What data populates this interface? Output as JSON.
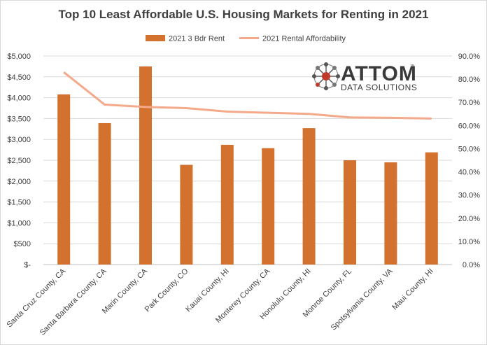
{
  "chart_data": {
    "type": "bar",
    "title": "Top 10 Least Affordable U.S. Housing Markets for Renting in 2021",
    "categories": [
      "Santa Cruz County, CA",
      "Santa Barbara County, CA",
      "Marin County, CA",
      "Park County, CO",
      "Kauai County, HI",
      "Monterey County, CA",
      "Honolulu County, HI",
      "Monroe County, FL",
      "Spotsylvania County, VA",
      "Maui County, HI"
    ],
    "series": [
      {
        "name": "2021 3 Bdr Rent",
        "type": "bar",
        "axis": "left",
        "color": "#D2722E",
        "values": [
          4080,
          3390,
          4750,
          2390,
          2870,
          2790,
          3270,
          2500,
          2450,
          2690
        ]
      },
      {
        "name": "2021 Rental Affordability",
        "type": "line",
        "axis": "right",
        "color": "#F4A98A",
        "values": [
          83.0,
          69.0,
          68.0,
          67.5,
          66.0,
          65.5,
          65.0,
          63.5,
          63.3,
          63.0
        ]
      }
    ],
    "y_left": {
      "ylim": [
        0,
        5000
      ],
      "tick_labels": [
        "$-",
        "$500",
        "$1,000",
        "$1,500",
        "$2,000",
        "$2,500",
        "$3,000",
        "$3,500",
        "$4,000",
        "$4,500",
        "$5,000"
      ]
    },
    "y_right": {
      "ylim": [
        0,
        90
      ],
      "tick_labels": [
        "0.0%",
        "10.0%",
        "20.0%",
        "30.0%",
        "40.0%",
        "50.0%",
        "60.0%",
        "70.0%",
        "80.0%",
        "90.0%"
      ]
    },
    "grid": true,
    "legend_position": "top-center"
  },
  "logo": {
    "brand": "ATTOM",
    "tagline": "DATA SOLUTIONS",
    "tm": "™"
  }
}
